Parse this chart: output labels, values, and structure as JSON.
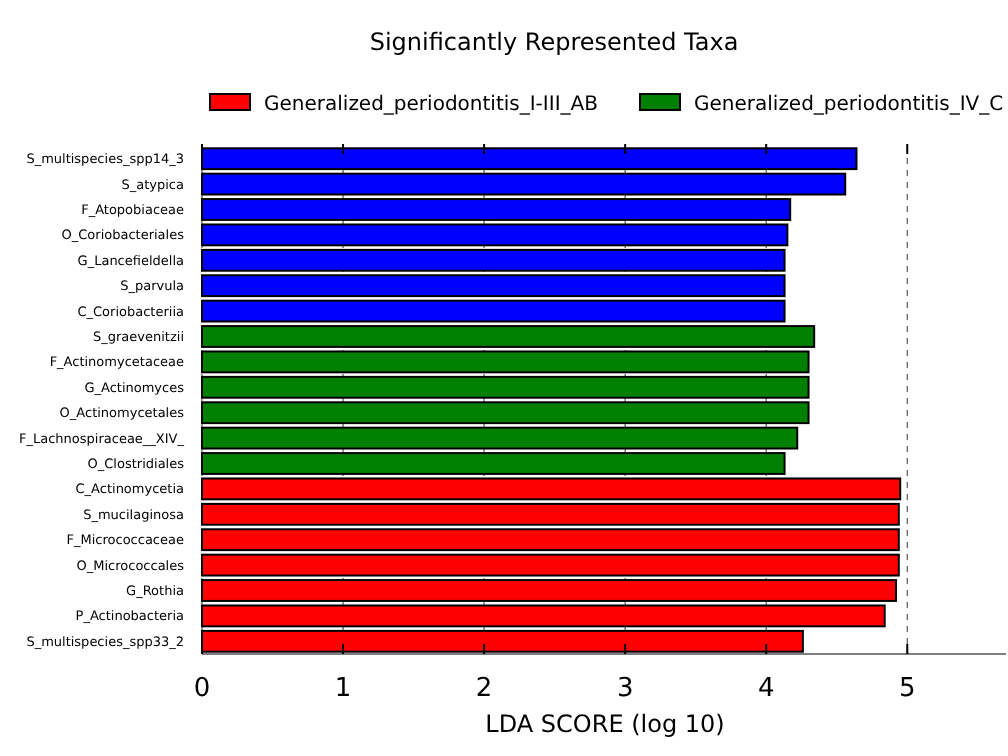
{
  "chart_data": {
    "type": "bar",
    "orientation": "horizontal",
    "title": "Significantly Represented Taxa",
    "xlabel": "LDA SCORE (log 10)",
    "categories": [
      "S_multispecies_spp14_3",
      "S_atypica",
      "F_Atopobiaceae",
      "O_Coriobacteriales",
      "G_Lancefieldella",
      "S_parvula",
      "C_Coriobacteriia",
      "S_graevenitzii",
      "F_Actinomycetaceae",
      "G_Actinomyces",
      "O_Actinomycetales",
      "F_Lachnospiraceae__XIV_",
      "O_Clostridiales",
      "C_Actinomycetia",
      "S_mucilaginosa",
      "F_Micrococcaceae",
      "O_Micrococcales",
      "G_Rothia",
      "P_Actinobacteria",
      "S_multispecies_spp33_2"
    ],
    "series": [
      {
        "name": "Generalized_periodontitis_I-III_AB",
        "color": "#ff0000",
        "values": [
          null,
          null,
          null,
          null,
          null,
          null,
          null,
          null,
          null,
          null,
          null,
          null,
          null,
          4.95,
          4.94,
          4.94,
          4.94,
          4.92,
          4.84,
          4.26
        ]
      },
      {
        "name": "Generalized_periodontitis_IV_C",
        "color": "#007f00",
        "values": [
          null,
          null,
          null,
          null,
          null,
          null,
          null,
          4.34,
          4.3,
          4.3,
          4.3,
          4.22,
          4.13,
          null,
          null,
          null,
          null,
          null,
          null,
          null
        ]
      },
      {
        "color": "#0000ff",
        "values": [
          4.64,
          4.56,
          4.17,
          4.15,
          4.13,
          4.13,
          4.13,
          null,
          null,
          null,
          null,
          null,
          null,
          null,
          null,
          null,
          null,
          null,
          null,
          null
        ]
      }
    ],
    "xlim": [
      0,
      5.7
    ],
    "xticks": [
      0,
      1,
      2,
      3,
      4,
      5
    ],
    "grid": "x",
    "legend": "top"
  }
}
